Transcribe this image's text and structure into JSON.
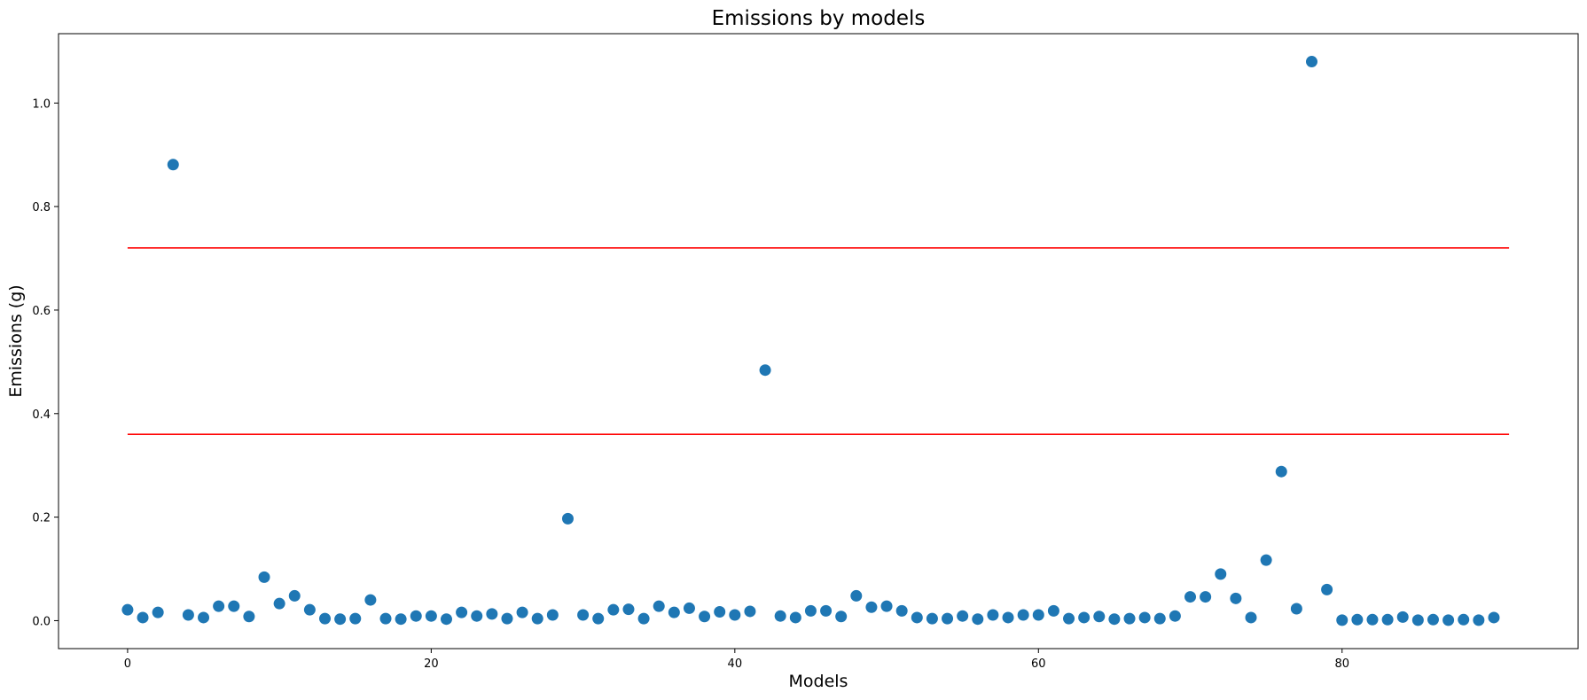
{
  "chart_data": {
    "type": "scatter",
    "title": "Emissions by models",
    "xlabel": "Models",
    "ylabel": "Emissions (g)",
    "xlim": [
      -4.55,
      95.55
    ],
    "ylim": [
      -0.054,
      1.134
    ],
    "xticks": [
      0,
      20,
      40,
      60,
      80
    ],
    "yticks": [
      0.0,
      0.2,
      0.4,
      0.6,
      0.8,
      1.0
    ],
    "xtick_labels": [
      "0",
      "20",
      "40",
      "60",
      "80"
    ],
    "ytick_labels": [
      "0.0",
      "0.2",
      "0.4",
      "0.6",
      "0.8",
      "1.0"
    ],
    "grid": false,
    "colors": {
      "points": "#1f77b4",
      "reference_lines": "#ff0000",
      "axes": "#000000"
    },
    "reference_lines": [
      {
        "y": 0.72,
        "x_start": 0,
        "x_end": 91
      },
      {
        "y": 0.36,
        "x_start": 0,
        "x_end": 91
      }
    ],
    "series": [
      {
        "x": [
          0,
          1,
          2,
          3,
          4,
          5,
          6,
          7,
          8,
          9,
          10,
          11,
          12,
          13,
          14,
          15,
          16,
          17,
          18,
          19,
          20,
          21,
          22,
          23,
          24,
          25,
          26,
          27,
          28,
          29,
          30,
          31,
          32,
          33,
          34,
          35,
          36,
          37,
          38,
          39,
          40,
          41,
          42,
          43,
          44,
          45,
          46,
          47,
          48,
          49,
          50,
          51,
          52,
          53,
          54,
          55,
          56,
          57,
          58,
          59,
          60,
          61,
          62,
          63,
          64,
          65,
          66,
          67,
          68,
          69,
          70,
          71,
          72,
          73,
          74,
          75,
          76,
          77,
          78,
          79,
          80,
          81,
          82,
          83,
          84,
          85,
          86,
          87,
          88,
          89,
          90
        ],
        "y": [
          0.021,
          0.006,
          0.016,
          0.881,
          0.011,
          0.006,
          0.028,
          0.028,
          0.008,
          0.084,
          0.033,
          0.048,
          0.021,
          0.004,
          0.003,
          0.004,
          0.04,
          0.004,
          0.003,
          0.009,
          0.009,
          0.003,
          0.016,
          0.009,
          0.013,
          0.004,
          0.016,
          0.004,
          0.011,
          0.197,
          0.011,
          0.004,
          0.021,
          0.022,
          0.004,
          0.028,
          0.016,
          0.024,
          0.008,
          0.017,
          0.011,
          0.018,
          0.484,
          0.009,
          0.006,
          0.019,
          0.019,
          0.008,
          0.048,
          0.026,
          0.028,
          0.019,
          0.006,
          0.004,
          0.004,
          0.009,
          0.003,
          0.011,
          0.006,
          0.011,
          0.011,
          0.019,
          0.004,
          0.006,
          0.008,
          0.003,
          0.004,
          0.006,
          0.004,
          0.009,
          0.046,
          0.046,
          0.09,
          0.043,
          0.006,
          0.117,
          0.288,
          0.023,
          1.08,
          0.06,
          0.001,
          0.002,
          0.002,
          0.002,
          0.007,
          0.001,
          0.002,
          0.001,
          0.002,
          0.001,
          0.006
        ]
      }
    ]
  }
}
